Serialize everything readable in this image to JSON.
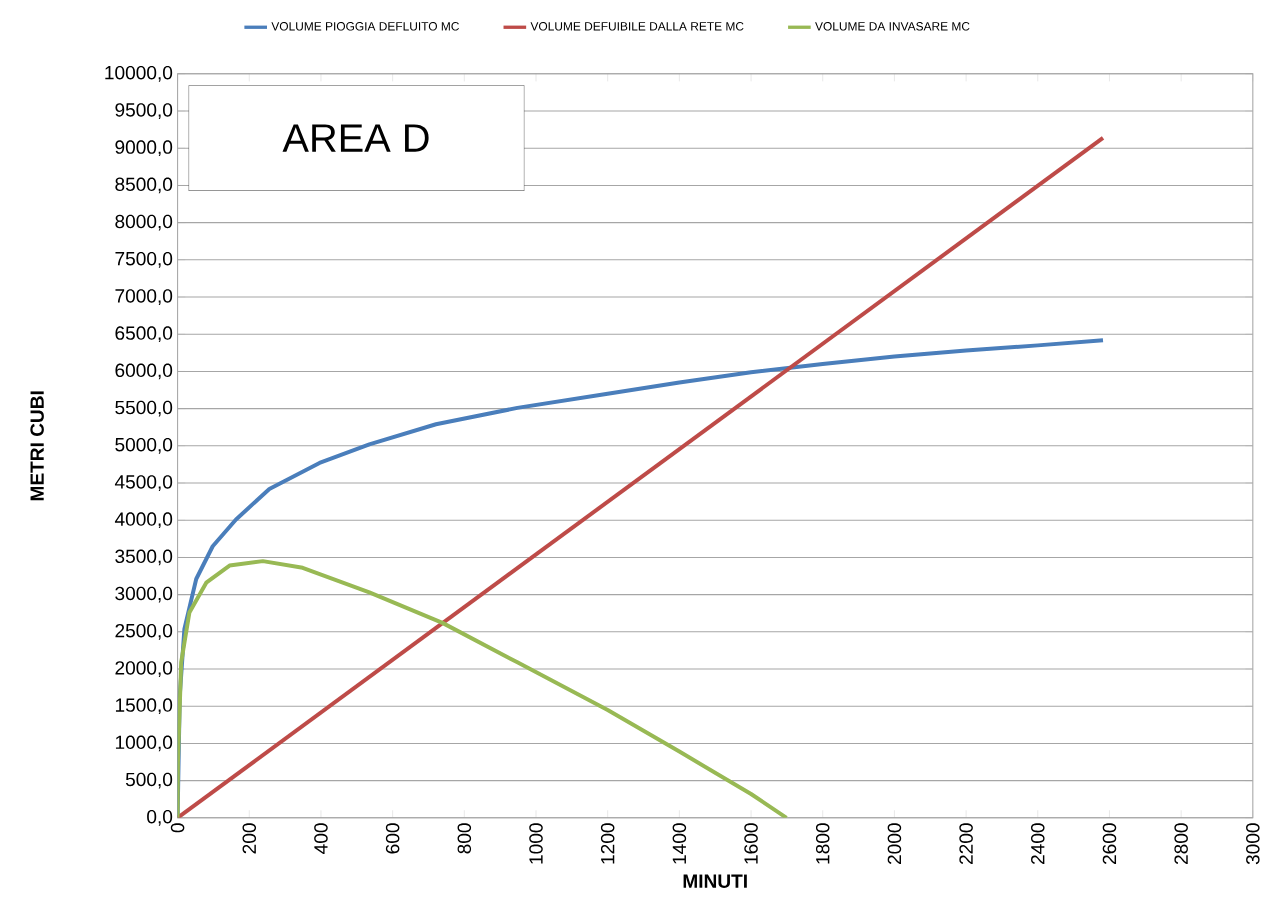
{
  "chart_data": {
    "type": "line",
    "xlabel": "MINUTI",
    "ylabel": "METRI CUBI",
    "annotations": [
      "AREA D"
    ],
    "xlim": [
      0,
      3000
    ],
    "xticks": [
      0,
      200,
      400,
      600,
      800,
      1000,
      1200,
      1400,
      1600,
      1800,
      2000,
      2200,
      2400,
      2600,
      2800,
      3000
    ],
    "ylim": [
      0,
      10000
    ],
    "yticks": [
      {
        "value": 0,
        "label": "0,0"
      },
      {
        "value": 500,
        "label": "500,0"
      },
      {
        "value": 1000,
        "label": "1000,0"
      },
      {
        "value": 1500,
        "label": "1500,0"
      },
      {
        "value": 2000,
        "label": "2000,0"
      },
      {
        "value": 2500,
        "label": "2500,0"
      },
      {
        "value": 3000,
        "label": "3000,0"
      },
      {
        "value": 3500,
        "label": "3500,0"
      },
      {
        "value": 4000,
        "label": "4000,0"
      },
      {
        "value": 4500,
        "label": "4500,0"
      },
      {
        "value": 5000,
        "label": "5000,0"
      },
      {
        "value": 5500,
        "label": "5500,0"
      },
      {
        "value": 6000,
        "label": "6000,0"
      },
      {
        "value": 6500,
        "label": "6500,0"
      },
      {
        "value": 7000,
        "label": "7000,0"
      },
      {
        "value": 7500,
        "label": "7500,0"
      },
      {
        "value": 8000,
        "label": "8000,0"
      },
      {
        "value": 8500,
        "label": "8500,0"
      },
      {
        "value": 9000,
        "label": "9000,0"
      },
      {
        "value": 9500,
        "label": "9500,0"
      },
      {
        "value": 10000,
        "label": "10000,0"
      }
    ],
    "grid": "y",
    "legend": "top",
    "marker": "none",
    "line_style": "solid",
    "series": [
      {
        "name": "VOLUME PIOGGIA DEFLUITO MC",
        "color": "#4a7ebb",
        "x": [
          0,
          6,
          19,
          52,
          98,
          163,
          256,
          396,
          535,
          721,
          948,
          1200,
          1400,
          1600,
          1800,
          2000,
          2200,
          2400,
          2582
        ],
        "values": [
          0,
          1640,
          2540,
          3210,
          3650,
          4010,
          4420,
          4770,
          5020,
          5290,
          5510,
          5700,
          5850,
          5990,
          6100,
          6200,
          6280,
          6350,
          6420
        ]
      },
      {
        "name": "VOLUME DEFUIBILE DALLA RETE MC",
        "color": "#be4b48",
        "x": [
          0,
          2582
        ],
        "values": [
          0,
          9140
        ]
      },
      {
        "name": "VOLUME DA INVASARE MC",
        "color": "#98b954",
        "x": [
          0,
          1,
          10,
          33,
          80,
          145,
          238,
          349,
          535,
          739,
          948,
          1200,
          1400,
          1600,
          1699
        ],
        "values": [
          0,
          750,
          2090,
          2760,
          3160,
          3390,
          3450,
          3360,
          3030,
          2620,
          2090,
          1450,
          890,
          320,
          0
        ]
      }
    ]
  }
}
